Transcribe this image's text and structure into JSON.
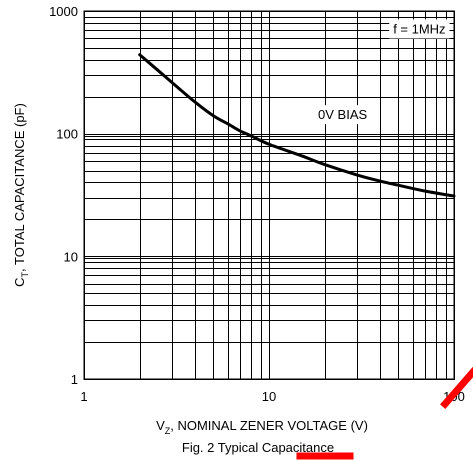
{
  "chart_data": {
    "type": "line",
    "xlabel": {
      "main": "V",
      "sub": "Z",
      "rest": ", NOMINAL ZENER VOLTAGE (V)"
    },
    "ylabel": {
      "main": "C",
      "sub": "T",
      "rest": ", TOTAL CAPACITANCE (pF)"
    },
    "xscale": "log",
    "yscale": "log",
    "xlim": [
      1,
      100
    ],
    "ylim": [
      1,
      1000
    ],
    "x_ticks": [
      {
        "v": 1,
        "label": "1"
      },
      {
        "v": 10,
        "label": "10"
      },
      {
        "v": 100,
        "label": "100"
      }
    ],
    "y_ticks": [
      {
        "v": 1,
        "label": "1"
      },
      {
        "v": 10,
        "label": "10"
      },
      {
        "v": 100,
        "label": "100"
      },
      {
        "v": 1000,
        "label": "1000"
      }
    ],
    "grid": true,
    "series": [
      {
        "x": [
          2.0,
          2.5,
          3.0,
          4.0,
          5.0,
          6.0,
          7.0,
          8.0,
          10.0,
          15.0,
          20.0,
          30.0,
          40.0,
          50.0,
          70.0,
          100.0
        ],
        "y": [
          440,
          330,
          260,
          180,
          140,
          120,
          105,
          96,
          82,
          66,
          56,
          46,
          41,
          38,
          34,
          31
        ]
      }
    ],
    "annotations": [
      {
        "text": "f = 1MHz",
        "x": 65,
        "y": 700
      },
      {
        "text": "0V BIAS",
        "x": 25,
        "y": 140
      }
    ]
  },
  "caption": "Fig. 2  Typical Capacitance"
}
